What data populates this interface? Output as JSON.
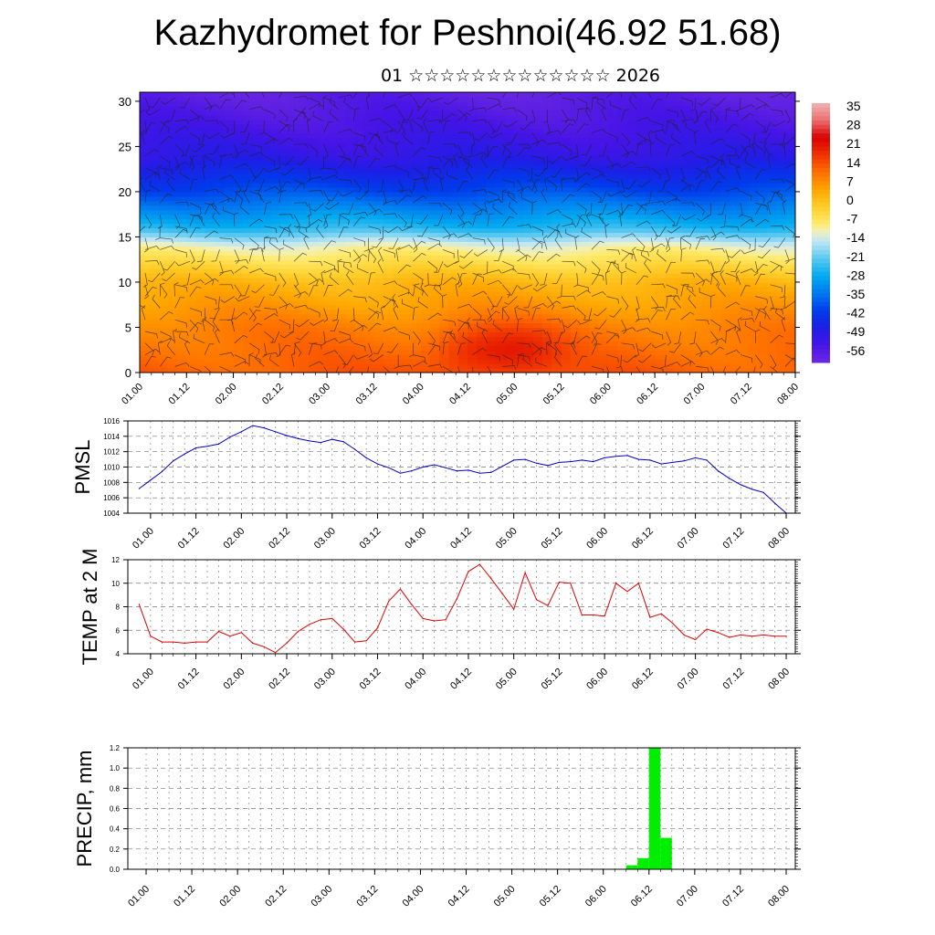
{
  "title": "Kazhydromet for Peshnoi(46.92 51.68)",
  "subtitle": "01 ☆☆☆☆☆☆☆☆☆☆☆☆☆ 2026",
  "chart_data": [
    {
      "type": "heatmap",
      "xlabel": "",
      "ylabel": "",
      "x_tick_labels": [
        "01.00",
        "01.12",
        "02.00",
        "02.12",
        "03.00",
        "03.12",
        "04.00",
        "04.12",
        "05.00",
        "05.12",
        "06.00",
        "06.12",
        "07.00",
        "07.12",
        "08.00"
      ],
      "y_ticks": [
        0,
        5,
        10,
        15,
        20,
        25,
        30
      ],
      "ylim": [
        0,
        31
      ],
      "colorbar_labels": [
        "35",
        "28",
        "21",
        "14",
        "7",
        "0",
        "-7",
        "-14",
        "-21",
        "-28",
        "-35",
        "-42",
        "-49",
        "-56"
      ],
      "colorbar_range": [
        -63,
        42
      ],
      "overlay": "wind barbs",
      "temperature_profile": [
        {
          "level": 0,
          "value": 16
        },
        {
          "level": 5,
          "value": 12
        },
        {
          "level": 10,
          "value": 4
        },
        {
          "level": 14,
          "value": -10
        },
        {
          "level": 16,
          "value": -25
        },
        {
          "level": 20,
          "value": -40
        },
        {
          "level": 24,
          "value": -52
        },
        {
          "level": 27,
          "value": -56
        },
        {
          "level": 31,
          "value": -60
        }
      ],
      "warm_cores": [
        {
          "time": 4.55,
          "level": 2.5,
          "value": 24
        },
        {
          "time": 5.1,
          "level": 2.5,
          "value": 24
        }
      ]
    },
    {
      "type": "line",
      "ylabel": "PMSL",
      "ylim": [
        1004,
        1016
      ],
      "y_ticks": [
        1004,
        1006,
        1008,
        1010,
        1012,
        1014,
        1016
      ],
      "x_tick_labels": [
        "01.00",
        "01.12",
        "02.00",
        "02.12",
        "03.00",
        "03.12",
        "04.00",
        "04.12",
        "05.00",
        "05.12",
        "06.00",
        "06.12",
        "07.00",
        "07.12",
        "08.00"
      ],
      "xlim": [
        0.75,
        8.1
      ],
      "color": "#0000cc",
      "x": [
        0.875,
        1.0,
        1.125,
        1.25,
        1.375,
        1.5,
        1.625,
        1.75,
        1.875,
        2.0,
        2.125,
        2.25,
        2.375,
        2.5,
        2.625,
        2.75,
        2.875,
        3.0,
        3.125,
        3.25,
        3.375,
        3.5,
        3.625,
        3.75,
        3.875,
        4.0,
        4.125,
        4.25,
        4.375,
        4.5,
        4.625,
        4.75,
        4.875,
        5.0,
        5.125,
        5.25,
        5.375,
        5.5,
        5.625,
        5.75,
        5.875,
        6.0,
        6.125,
        6.25,
        6.375,
        6.5,
        6.625,
        6.75,
        6.875,
        7.0,
        7.125,
        7.25,
        7.375,
        7.5,
        7.625,
        7.75,
        7.875,
        8.0
      ],
      "y": [
        1007.2,
        1008.3,
        1009.4,
        1010.8,
        1011.7,
        1012.5,
        1012.7,
        1013.0,
        1013.9,
        1014.6,
        1015.4,
        1015.1,
        1014.6,
        1014.1,
        1013.7,
        1013.4,
        1013.2,
        1013.6,
        1013.3,
        1012.3,
        1011.2,
        1010.4,
        1009.9,
        1009.2,
        1009.5,
        1010.0,
        1010.3,
        1009.9,
        1009.5,
        1009.6,
        1009.2,
        1009.3,
        1010.1,
        1010.9,
        1011.0,
        1010.5,
        1010.2,
        1010.6,
        1010.7,
        1010.9,
        1010.7,
        1011.2,
        1011.4,
        1011.5,
        1011.0,
        1010.9,
        1010.4,
        1010.6,
        1010.8,
        1011.2,
        1010.9,
        1009.5,
        1008.5,
        1007.7,
        1007.1,
        1006.7,
        1005.3,
        1004.0
      ]
    },
    {
      "type": "line",
      "ylabel": "TEMP at 2 M",
      "ylim": [
        4,
        12
      ],
      "y_ticks": [
        4,
        6,
        8,
        10,
        12
      ],
      "x_tick_labels": [
        "01.00",
        "01.12",
        "02.00",
        "02.12",
        "03.00",
        "03.12",
        "04.00",
        "04.12",
        "05.00",
        "05.12",
        "06.00",
        "06.12",
        "07.00",
        "07.12",
        "08.00"
      ],
      "xlim": [
        0.75,
        8.1
      ],
      "color": "#dd0000",
      "x": [
        0.875,
        1.0,
        1.125,
        1.25,
        1.375,
        1.5,
        1.625,
        1.75,
        1.875,
        2.0,
        2.125,
        2.25,
        2.375,
        2.5,
        2.625,
        2.75,
        2.875,
        3.0,
        3.125,
        3.25,
        3.375,
        3.5,
        3.625,
        3.75,
        3.875,
        4.0,
        4.125,
        4.25,
        4.375,
        4.5,
        4.625,
        4.75,
        4.875,
        5.0,
        5.125,
        5.25,
        5.375,
        5.5,
        5.625,
        5.75,
        5.875,
        6.0,
        6.125,
        6.25,
        6.375,
        6.5,
        6.625,
        6.75,
        6.875,
        7.0,
        7.125,
        7.25,
        7.375,
        7.5,
        7.625,
        7.75,
        7.875,
        8.0
      ],
      "y": [
        8.2,
        5.5,
        5.0,
        5.0,
        4.9,
        5.0,
        5.0,
        5.9,
        5.5,
        5.8,
        4.9,
        4.6,
        4.1,
        4.9,
        5.9,
        6.5,
        6.9,
        7.0,
        6.1,
        5.0,
        5.1,
        6.2,
        8.5,
        9.5,
        8.2,
        7.0,
        6.8,
        6.9,
        8.7,
        11.0,
        11.6,
        10.4,
        9.1,
        7.8,
        10.9,
        8.6,
        8.1,
        10.1,
        10.0,
        7.3,
        7.3,
        7.2,
        10.0,
        9.3,
        10.0,
        7.1,
        7.4,
        6.6,
        5.6,
        5.2,
        6.1,
        5.8,
        5.4,
        5.6,
        5.5,
        5.6,
        5.5,
        5.5
      ]
    },
    {
      "type": "bar",
      "ylabel": "PRECIP, mm",
      "ylim": [
        0,
        1.2
      ],
      "y_ticks": [
        "0.0",
        "0.2",
        "0.4",
        "0.6",
        "0.8",
        "1.0",
        "1.2"
      ],
      "x_tick_labels": [
        "01.00",
        "01.12",
        "02.00",
        "02.12",
        "03.00",
        "03.12",
        "04.00",
        "04.12",
        "05.00",
        "05.12",
        "06.00",
        "06.12",
        "07.00",
        "07.12",
        "08.00"
      ],
      "xlim": [
        0.8,
        8.1
      ],
      "color": "#00ee00",
      "bar_width": 0.125,
      "x": [
        6.25,
        6.375,
        6.5,
        6.625
      ],
      "values": [
        0.04,
        0.11,
        1.2,
        0.31
      ]
    }
  ]
}
